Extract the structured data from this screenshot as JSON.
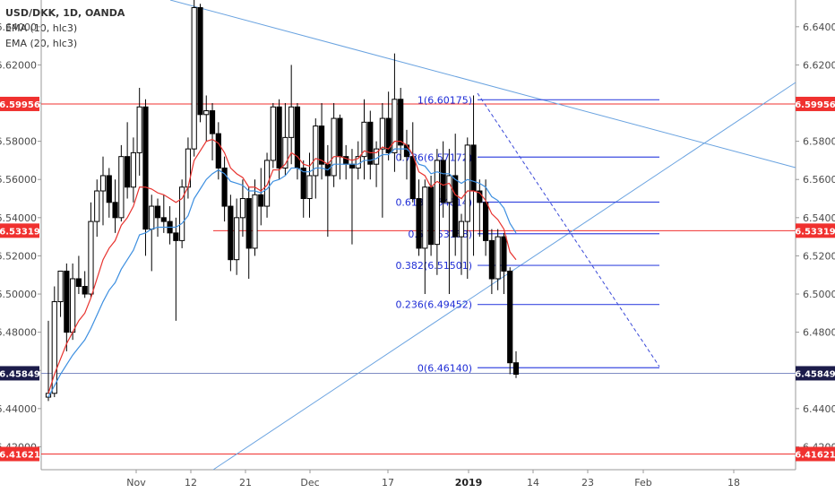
{
  "chart_data": {
    "type": "candlestick",
    "legend": [
      "USD/DKK, 1D, OANDA",
      "EMA (10, hlc3)",
      "EMA (20, hlc3)"
    ],
    "y_ticks": [
      "6.64000",
      "6.62000",
      "6.60000",
      "6.58000",
      "6.56000",
      "6.54000",
      "6.52000",
      "6.50000",
      "6.48000",
      "6.46000",
      "6.44000",
      "6.42000"
    ],
    "ylim": [
      6.408,
      6.654
    ],
    "x_ticks": [
      "Nov",
      "12",
      "21",
      "Dec",
      "17",
      "2019",
      "14",
      "23",
      "Feb",
      "18"
    ],
    "x_ticks_bold": [
      "2019"
    ],
    "price_tags": [
      {
        "value": "6.59956",
        "color": "#f0312f"
      },
      {
        "value": "6.53319",
        "color": "#f0312f"
      },
      {
        "value": "6.45849",
        "color": "#1c1c4a"
      },
      {
        "value": "6.41621",
        "color": "#f0312f"
      }
    ],
    "fib_levels": [
      {
        "label": "1(6.60175)",
        "price": 6.60175
      },
      {
        "label": "0.786(6.57172)",
        "price": 6.57172
      },
      {
        "label": "0.618(6.54814)",
        "price": 6.54814
      },
      {
        "label": "0.5(6.53158)",
        "price": 6.53158
      },
      {
        "label": "0.382(6.51501)",
        "price": 6.51501
      },
      {
        "label": "0.236(6.49452)",
        "price": 6.49452
      },
      {
        "label": "0(6.46140)",
        "price": 6.4614
      }
    ],
    "candles": [
      [
        6.446,
        6.486,
        6.444,
        6.448
      ],
      [
        6.448,
        6.504,
        6.446,
        6.496
      ],
      [
        6.496,
        6.512,
        6.488,
        6.512
      ],
      [
        6.512,
        6.516,
        6.47,
        6.48
      ],
      [
        6.48,
        6.516,
        6.476,
        6.508
      ],
      [
        6.508,
        6.52,
        6.5,
        6.504
      ],
      [
        6.504,
        6.512,
        6.498,
        6.5
      ],
      [
        6.5,
        6.548,
        6.498,
        6.538
      ],
      [
        6.538,
        6.56,
        6.53,
        6.554
      ],
      [
        6.554,
        6.572,
        6.536,
        6.562
      ],
      [
        6.562,
        6.566,
        6.54,
        6.548
      ],
      [
        6.548,
        6.56,
        6.532,
        6.54
      ],
      [
        6.54,
        6.578,
        6.538,
        6.572
      ],
      [
        6.572,
        6.59,
        6.55,
        6.556
      ],
      [
        6.556,
        6.582,
        6.548,
        6.574
      ],
      [
        6.574,
        6.608,
        6.562,
        6.598
      ],
      [
        6.598,
        6.602,
        6.52,
        6.534
      ],
      [
        6.534,
        6.552,
        6.512,
        6.546
      ],
      [
        6.546,
        6.55,
        6.53,
        6.54
      ],
      [
        6.54,
        6.552,
        6.532,
        6.538
      ],
      [
        6.538,
        6.546,
        6.526,
        6.532
      ],
      [
        6.532,
        6.54,
        6.486,
        6.528
      ],
      [
        6.528,
        6.56,
        6.524,
        6.556
      ],
      [
        6.556,
        6.582,
        6.55,
        6.576
      ],
      [
        6.576,
        6.654,
        6.572,
        6.65
      ],
      [
        6.65,
        6.652,
        6.59,
        6.594
      ],
      [
        6.594,
        6.604,
        6.58,
        6.596
      ],
      [
        6.596,
        6.6,
        6.57,
        6.584
      ],
      [
        6.584,
        6.59,
        6.56,
        6.566
      ],
      [
        6.566,
        6.572,
        6.538,
        6.546
      ],
      [
        6.546,
        6.552,
        6.512,
        6.518
      ],
      [
        6.518,
        6.55,
        6.51,
        6.54
      ],
      [
        6.54,
        6.56,
        6.53,
        6.55
      ],
      [
        6.55,
        6.556,
        6.508,
        6.524
      ],
      [
        6.524,
        6.56,
        6.52,
        6.552
      ],
      [
        6.552,
        6.566,
        6.536,
        6.546
      ],
      [
        6.546,
        6.574,
        6.54,
        6.57
      ],
      [
        6.57,
        6.6,
        6.566,
        6.598
      ],
      [
        6.598,
        6.602,
        6.56,
        6.566
      ],
      [
        6.566,
        6.6,
        6.562,
        6.582
      ],
      [
        6.582,
        6.62,
        6.568,
        6.598
      ],
      [
        6.598,
        6.6,
        6.56,
        6.566
      ],
      [
        6.566,
        6.57,
        6.54,
        6.55
      ],
      [
        6.55,
        6.574,
        6.54,
        6.562
      ],
      [
        6.562,
        6.592,
        6.55,
        6.588
      ],
      [
        6.588,
        6.6,
        6.56,
        6.568
      ],
      [
        6.568,
        6.578,
        6.53,
        6.562
      ],
      [
        6.562,
        6.6,
        6.556,
        6.592
      ],
      [
        6.592,
        6.594,
        6.56,
        6.572
      ],
      [
        6.572,
        6.578,
        6.56,
        6.568
      ],
      [
        6.568,
        6.576,
        6.526,
        6.566
      ],
      [
        6.566,
        6.58,
        6.56,
        6.572
      ],
      [
        6.572,
        6.602,
        6.56,
        6.59
      ],
      [
        6.59,
        6.596,
        6.56,
        6.568
      ],
      [
        6.568,
        6.58,
        6.556,
        6.576
      ],
      [
        6.576,
        6.6,
        6.54,
        6.592
      ],
      [
        6.592,
        6.606,
        6.57,
        6.574
      ],
      [
        6.574,
        6.626,
        6.564,
        6.602
      ],
      [
        6.602,
        6.608,
        6.57,
        6.578
      ],
      [
        6.578,
        6.586,
        6.56,
        6.572
      ],
      [
        6.572,
        6.59,
        6.548,
        6.55
      ],
      [
        6.55,
        6.56,
        6.52,
        6.524
      ],
      [
        6.524,
        6.56,
        6.5,
        6.556
      ],
      [
        6.556,
        6.562,
        6.52,
        6.526
      ],
      [
        6.526,
        6.576,
        6.51,
        6.57
      ],
      [
        6.57,
        6.58,
        6.54,
        6.548
      ],
      [
        6.548,
        6.576,
        6.5,
        6.562
      ],
      [
        6.562,
        6.584,
        6.52,
        6.53
      ],
      [
        6.53,
        6.542,
        6.51,
        6.538
      ],
      [
        6.538,
        6.582,
        6.508,
        6.578
      ],
      [
        6.578,
        6.604,
        6.52,
        6.554
      ],
      [
        6.554,
        6.56,
        6.53,
        6.548
      ],
      [
        6.548,
        6.56,
        6.52,
        6.528
      ],
      [
        6.528,
        6.534,
        6.5,
        6.508
      ],
      [
        6.508,
        6.534,
        6.502,
        6.53
      ],
      [
        6.53,
        6.532,
        6.5,
        6.512
      ],
      [
        6.512,
        6.514,
        6.458,
        6.464
      ],
      [
        6.464,
        6.47,
        6.456,
        6.458
      ]
    ],
    "ema10": [
      6.448,
      6.458,
      6.466,
      6.474,
      6.48,
      6.486,
      6.49,
      6.498,
      6.508,
      6.518,
      6.524,
      6.528,
      6.536,
      6.54,
      6.546,
      6.556,
      6.556,
      6.555,
      6.553,
      6.552,
      6.55,
      6.548,
      6.55,
      6.556,
      6.57,
      6.575,
      6.58,
      6.581,
      6.579,
      6.574,
      6.566,
      6.563,
      6.561,
      6.556,
      6.556,
      6.554,
      6.557,
      6.565,
      6.565,
      6.568,
      6.574,
      6.572,
      6.568,
      6.567,
      6.571,
      6.57,
      6.568,
      6.572,
      6.572,
      6.571,
      6.57,
      6.571,
      6.575,
      6.574,
      6.574,
      6.577,
      6.576,
      6.58,
      6.58,
      6.578,
      6.573,
      6.564,
      6.562,
      6.556,
      6.559,
      6.557,
      6.558,
      6.552,
      6.55,
      6.554,
      6.554,
      6.553,
      6.549,
      6.542,
      6.539,
      6.534,
      6.522,
      6.518
    ],
    "ema20": [
      6.446,
      6.452,
      6.458,
      6.463,
      6.468,
      6.472,
      6.476,
      6.482,
      6.489,
      6.496,
      6.502,
      6.506,
      6.513,
      6.518,
      6.523,
      6.531,
      6.532,
      6.534,
      6.535,
      6.535,
      6.535,
      6.535,
      6.537,
      6.541,
      6.55,
      6.555,
      6.56,
      6.563,
      6.565,
      6.563,
      6.559,
      6.558,
      6.557,
      6.554,
      6.554,
      6.553,
      6.555,
      6.559,
      6.56,
      6.562,
      6.566,
      6.566,
      6.564,
      6.564,
      6.566,
      6.566,
      6.565,
      6.568,
      6.568,
      6.568,
      6.568,
      6.568,
      6.57,
      6.57,
      6.571,
      6.573,
      6.573,
      6.576,
      6.576,
      6.576,
      6.573,
      6.568,
      6.567,
      6.563,
      6.564,
      6.563,
      6.563,
      6.56,
      6.558,
      6.56,
      6.559,
      6.558,
      6.556,
      6.551,
      6.549,
      6.545,
      6.537,
      6.532
    ]
  }
}
